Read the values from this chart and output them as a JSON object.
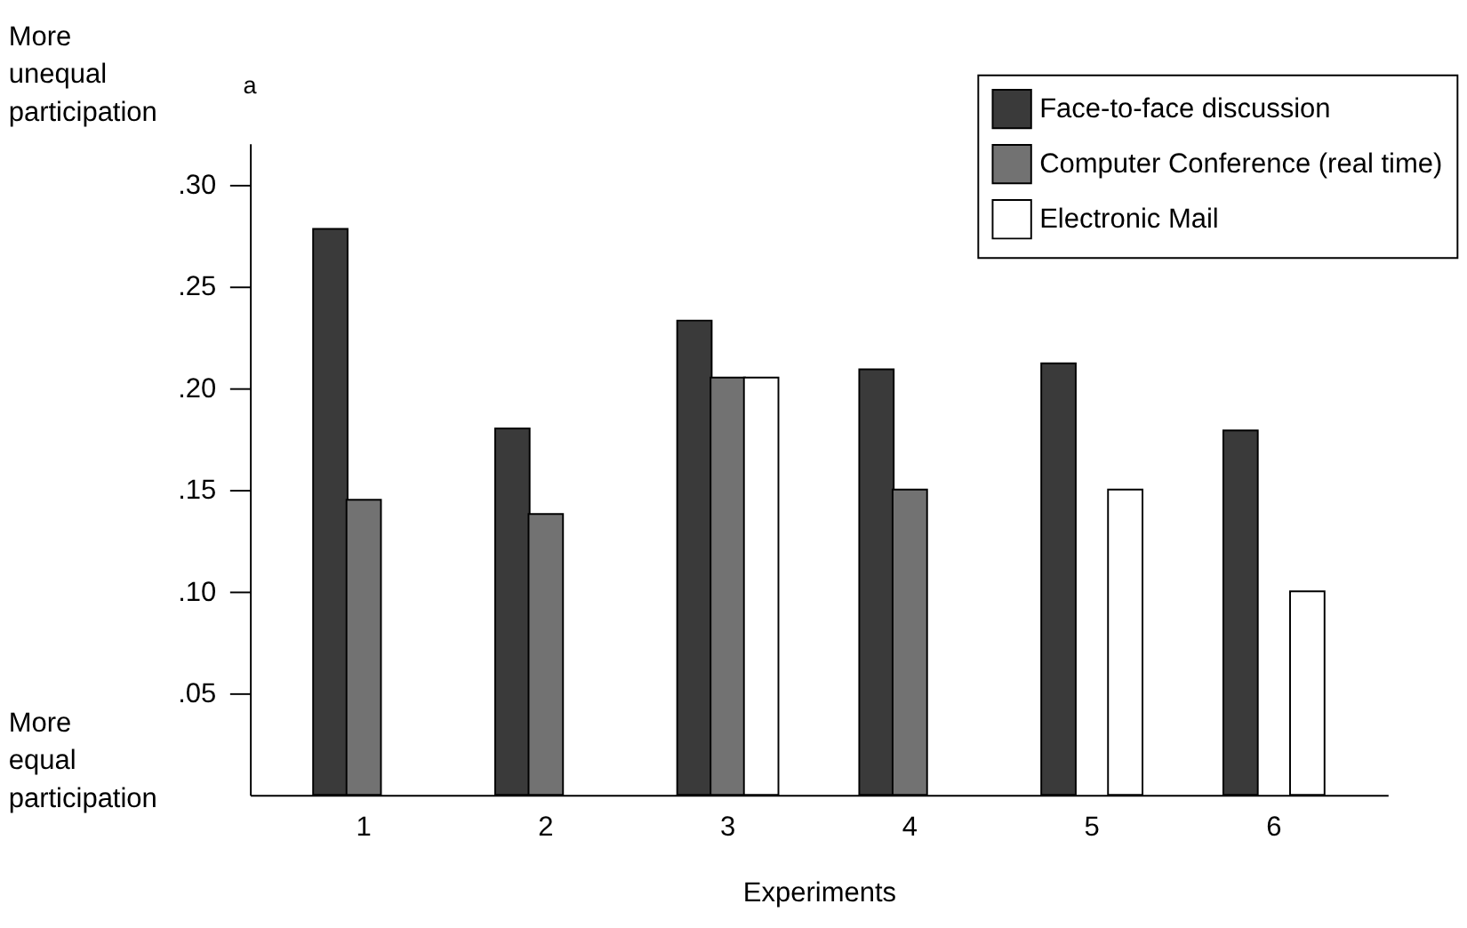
{
  "chart_data": {
    "type": "bar",
    "xlabel": "Experiments",
    "categories": [
      "1",
      "2",
      "3",
      "4",
      "5",
      "6"
    ],
    "series": [
      {
        "name": "Face-to-face discussion",
        "color": "#3a3a3a",
        "values": [
          0.278,
          0.18,
          0.233,
          0.209,
          0.212,
          0.179
        ]
      },
      {
        "name": "Computer Conference (real time)",
        "color": "#727272",
        "values": [
          0.145,
          0.138,
          0.205,
          0.15,
          null,
          null
        ]
      },
      {
        "name": "Electronic Mail",
        "color": "#ffffff",
        "values": [
          null,
          null,
          0.205,
          null,
          0.15,
          0.1
        ]
      }
    ],
    "ylim": [
      0,
      0.32
    ],
    "yticks": [
      {
        "value": 0.05,
        "label": ".05"
      },
      {
        "value": 0.1,
        "label": ".10"
      },
      {
        "value": 0.15,
        "label": ".15"
      },
      {
        "value": 0.2,
        "label": ".20"
      },
      {
        "value": 0.25,
        "label": ".25"
      },
      {
        "value": 0.3,
        "label": ".30"
      }
    ],
    "annotations": [
      "More unequal participation$^{a}$",
      "More equal participation"
    ],
    "legend": "top right",
    "grid": false
  }
}
